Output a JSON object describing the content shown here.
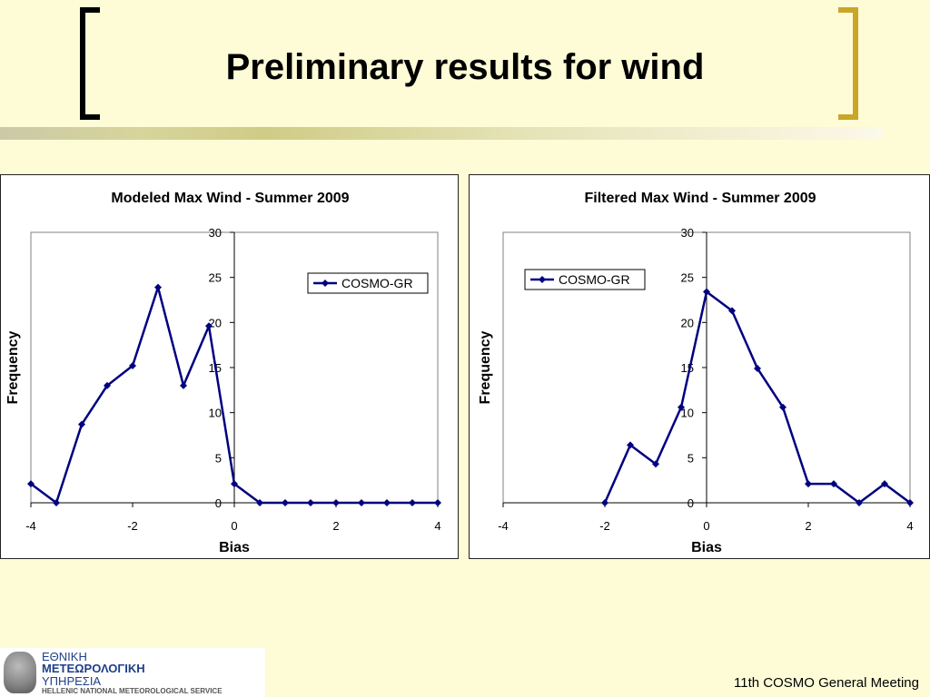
{
  "slide": {
    "title": "Preliminary results for wind",
    "footer": "11th COSMO General Meeting",
    "colors": {
      "background": "#fefcd6",
      "bracket_left": "#000000",
      "bracket_right": "#c9a52a",
      "series": "#000080"
    }
  },
  "logo": {
    "line1": "ΕΘΝΙΚΗ",
    "line2": "ΜΕΤΕΩΡΟΛΟΓΙΚΗ",
    "line3": "ΥΠΗΡΕΣΙΑ",
    "line4": "HELLENIC NATIONAL METEOROLOGICAL SERVICE"
  },
  "chart_data": [
    {
      "type": "line",
      "title": "Modeled Max Wind - Summer 2009",
      "xlabel": "Bias",
      "ylabel": "Frequency",
      "xlim": [
        -4,
        4
      ],
      "ylim": [
        0,
        30
      ],
      "xticks": [
        -4,
        -2,
        0,
        2,
        4
      ],
      "yticks": [
        0,
        5,
        10,
        15,
        20,
        25,
        30
      ],
      "grid": false,
      "legend_position": "top-right",
      "series": [
        {
          "name": "COSMO-GR",
          "x": [
            -4,
            -3.5,
            -3,
            -2.5,
            -2,
            -1.5,
            -1,
            -0.5,
            0,
            0.5,
            1,
            1.5,
            2,
            2.5,
            3,
            3.5,
            4
          ],
          "y": [
            2.1,
            0,
            8.7,
            13,
            15.2,
            23.9,
            13,
            19.6,
            2.1,
            0,
            0,
            0,
            0,
            0,
            0,
            0,
            0
          ]
        }
      ]
    },
    {
      "type": "line",
      "title": "Filtered Max Wind - Summer 2009",
      "xlabel": "Bias",
      "ylabel": "Frequency",
      "xlim": [
        -4,
        4
      ],
      "ylim": [
        0,
        30
      ],
      "xticks": [
        -4,
        -2,
        0,
        2,
        4
      ],
      "yticks": [
        0,
        5,
        10,
        15,
        20,
        25,
        30
      ],
      "grid": false,
      "legend_position": "top-left",
      "series": [
        {
          "name": "COSMO-GR",
          "x": [
            -2,
            -1.5,
            -1,
            -0.5,
            0,
            0.5,
            1,
            1.5,
            2,
            2.5,
            3,
            3.5,
            4
          ],
          "y": [
            0,
            6.4,
            4.3,
            10.6,
            23.4,
            21.3,
            14.9,
            10.6,
            2.1,
            2.1,
            0,
            2.1,
            0
          ]
        }
      ]
    }
  ]
}
